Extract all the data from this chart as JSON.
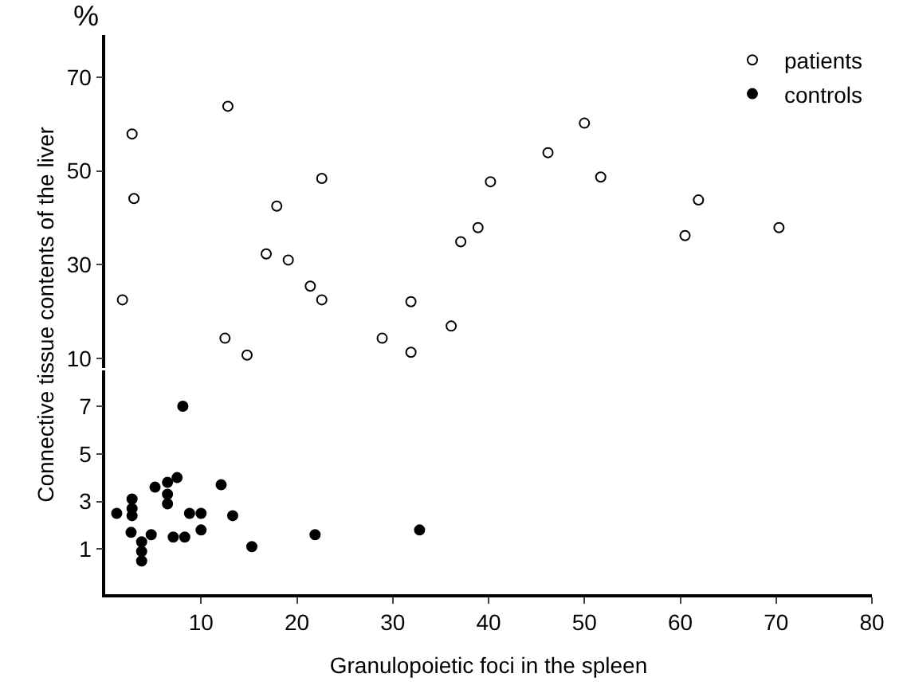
{
  "chart_data": [
    {
      "type": "scatter",
      "ylabel": "Connective tissue contents of the liver",
      "annotations": [
        "%"
      ],
      "xlim": [
        0,
        80
      ],
      "ylim": [
        8,
        79
      ],
      "yticks": [
        10,
        30,
        50,
        70
      ],
      "tick_labels": "y",
      "legend": "top right",
      "marker": "circle-open",
      "series": [
        {
          "name": "patients",
          "color": "#000000",
          "x": [
            1.8,
            2.8,
            3.0,
            12.8,
            12.5,
            14.8,
            16.8,
            17.9,
            19.1,
            21.4,
            22.6,
            22.6,
            28.9,
            31.9,
            31.9,
            36.1,
            37.1,
            38.9,
            40.2,
            46.2,
            50.0,
            51.7,
            60.5,
            61.9,
            70.3
          ],
          "values": [
            22.5,
            57.9,
            44.1,
            63.8,
            14.3,
            10.7,
            32.3,
            42.5,
            31.0,
            25.4,
            22.5,
            48.4,
            14.3,
            22.1,
            11.3,
            16.9,
            34.9,
            37.9,
            47.7,
            53.9,
            60.2,
            48.7,
            36.2,
            43.8,
            37.9
          ]
        }
      ]
    },
    {
      "type": "scatter",
      "xlabel": "Granulopoietic foci in the spleen",
      "xlim": [
        0,
        80
      ],
      "xticks": [
        10,
        20,
        30,
        40,
        50,
        60,
        70,
        80
      ],
      "ylim": [
        -0.9,
        8.5
      ],
      "yticks": [
        1,
        3,
        5,
        7
      ],
      "marker": "circle",
      "series": [
        {
          "name": "controls",
          "color": "#000000",
          "x": [
            1.2,
            2.8,
            2.8,
            2.8,
            2.7,
            3.8,
            3.8,
            3.8,
            4.8,
            5.2,
            6.5,
            6.5,
            6.5,
            7.1,
            7.5,
            8.1,
            8.3,
            8.8,
            10.0,
            10.0,
            12.1,
            13.3,
            15.3,
            21.9,
            32.8
          ],
          "values": [
            2.5,
            3.1,
            2.7,
            2.4,
            1.7,
            1.3,
            0.9,
            0.5,
            1.6,
            3.6,
            3.8,
            3.3,
            2.9,
            1.5,
            4.0,
            7.0,
            1.5,
            2.5,
            2.5,
            1.8,
            3.7,
            2.4,
            1.1,
            1.6,
            1.8
          ]
        }
      ]
    }
  ]
}
